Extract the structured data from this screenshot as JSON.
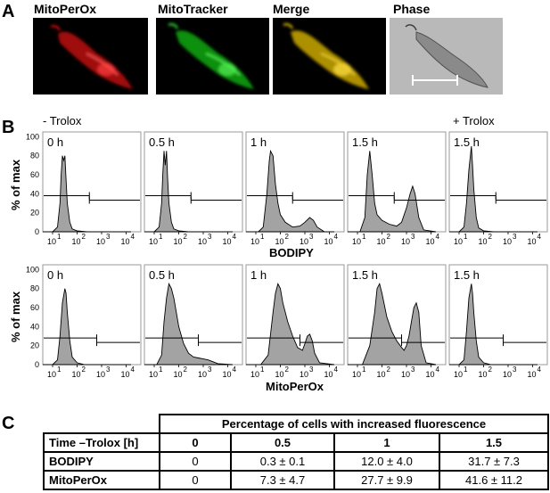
{
  "panels": {
    "a": "A",
    "b": "B",
    "c": "C"
  },
  "images": [
    {
      "label": "MitoPerOx",
      "color": "#e01010"
    },
    {
      "label": "MitoTracker",
      "color": "#20d020"
    },
    {
      "label": "Merge",
      "color": "#e8d010"
    },
    {
      "label": "Phase",
      "color": "#b8b8b8"
    }
  ],
  "condition_labels": {
    "minus": "- Trolox",
    "plus": "+ Trolox"
  },
  "ylabel": "% of max",
  "row_xlabels": [
    "BODIPY",
    "MitoPerOx"
  ],
  "y_ticks": [
    "100",
    "80",
    "60",
    "40",
    "20",
    "0"
  ],
  "x_ticks": [
    {
      "base": "10",
      "exp": "1"
    },
    {
      "base": "10",
      "exp": "2"
    },
    {
      "base": "10",
      "exp": "3"
    },
    {
      "base": "10",
      "exp": "4"
    }
  ],
  "chart_data": [
    {
      "type": "area",
      "row": "BODIPY",
      "time": "0 h",
      "gate_y": 38,
      "gate_split_log": 2.5,
      "x": [
        0.6,
        1.0,
        1.2,
        1.3,
        1.35,
        1.4,
        1.45,
        1.5,
        1.55,
        1.6,
        1.7,
        1.8,
        2.0,
        2.4,
        3.0,
        4.2
      ],
      "y": [
        0,
        0,
        5,
        30,
        60,
        80,
        75,
        80,
        55,
        30,
        10,
        3,
        1,
        0,
        0,
        0
      ]
    },
    {
      "type": "area",
      "row": "BODIPY",
      "time": "0.5 h",
      "gate_y": 38,
      "gate_split_log": 2.5,
      "x": [
        0.6,
        1.0,
        1.2,
        1.3,
        1.35,
        1.4,
        1.45,
        1.5,
        1.55,
        1.6,
        1.7,
        1.8,
        2.0,
        2.4,
        3.0,
        4.2
      ],
      "y": [
        0,
        0,
        5,
        30,
        60,
        85,
        70,
        85,
        55,
        30,
        10,
        3,
        1,
        0,
        0,
        0
      ]
    },
    {
      "type": "area",
      "row": "BODIPY",
      "time": "1 h",
      "gate_y": 38,
      "gate_split_log": 2.5,
      "x": [
        0.6,
        1.1,
        1.3,
        1.45,
        1.55,
        1.6,
        1.7,
        1.8,
        1.9,
        2.0,
        2.2,
        2.5,
        2.8,
        3.0,
        3.2,
        3.35,
        3.5,
        3.8,
        4.2
      ],
      "y": [
        0,
        0,
        5,
        40,
        75,
        85,
        80,
        50,
        30,
        18,
        10,
        5,
        6,
        10,
        15,
        12,
        5,
        0,
        0
      ]
    },
    {
      "type": "area",
      "row": "BODIPY",
      "time": "1.5 h",
      "gate_y": 38,
      "gate_split_log": 2.5,
      "x": [
        0.6,
        1.1,
        1.3,
        1.4,
        1.5,
        1.6,
        1.7,
        1.8,
        2.0,
        2.3,
        2.6,
        2.8,
        3.0,
        3.15,
        3.25,
        3.35,
        3.5,
        3.7,
        4.2
      ],
      "y": [
        0,
        0,
        15,
        60,
        85,
        60,
        30,
        18,
        12,
        8,
        6,
        10,
        25,
        40,
        48,
        40,
        15,
        2,
        0
      ]
    },
    {
      "type": "area",
      "row": "BODIPY",
      "time": "1.5 h",
      "treatment": "+ Trolox",
      "gate_y": 38,
      "gate_split_log": 2.5,
      "x": [
        0.6,
        1.0,
        1.2,
        1.3,
        1.4,
        1.5,
        1.55,
        1.6,
        1.7,
        1.8,
        2.0,
        2.4,
        3.0,
        4.2
      ],
      "y": [
        0,
        0,
        5,
        30,
        65,
        90,
        70,
        45,
        15,
        4,
        1,
        0,
        0,
        0
      ]
    },
    {
      "type": "area",
      "row": "MitoPerOx",
      "time": "0 h",
      "gate_y": 28,
      "gate_split_log": 2.8,
      "x": [
        0.6,
        1.0,
        1.2,
        1.3,
        1.4,
        1.5,
        1.55,
        1.6,
        1.7,
        1.8,
        2.0,
        2.3,
        3.0,
        4.2
      ],
      "y": [
        0,
        0,
        5,
        30,
        65,
        80,
        75,
        55,
        25,
        8,
        2,
        0,
        0,
        0
      ]
    },
    {
      "type": "area",
      "row": "MitoPerOx",
      "time": "0.5 h",
      "gate_y": 28,
      "gate_split_log": 2.8,
      "x": [
        0.6,
        1.1,
        1.3,
        1.4,
        1.5,
        1.6,
        1.7,
        1.8,
        1.9,
        2.0,
        2.2,
        2.4,
        2.6,
        2.8,
        3.0,
        3.2,
        3.4,
        3.6,
        4.2
      ],
      "y": [
        0,
        0,
        10,
        45,
        70,
        85,
        80,
        70,
        55,
        40,
        22,
        12,
        8,
        7,
        6,
        5,
        3,
        1,
        0
      ]
    },
    {
      "type": "area",
      "row": "MitoPerOx",
      "time": "1 h",
      "gate_y": 28,
      "gate_split_log": 2.8,
      "x": [
        0.6,
        1.2,
        1.5,
        1.7,
        1.8,
        1.9,
        2.0,
        2.1,
        2.3,
        2.5,
        2.7,
        2.9,
        3.0,
        3.1,
        3.2,
        3.3,
        3.4,
        3.6,
        4.2
      ],
      "y": [
        0,
        0,
        10,
        55,
        75,
        85,
        80,
        65,
        45,
        30,
        18,
        15,
        22,
        30,
        32,
        25,
        12,
        2,
        0
      ]
    },
    {
      "type": "area",
      "row": "MitoPerOx",
      "time": "1.5 h",
      "gate_y": 28,
      "gate_split_log": 2.8,
      "x": [
        0.6,
        1.2,
        1.5,
        1.7,
        1.8,
        1.9,
        2.0,
        2.2,
        2.4,
        2.6,
        2.8,
        2.9,
        3.0,
        3.1,
        3.2,
        3.3,
        3.4,
        3.5,
        3.6,
        3.8,
        4.2
      ],
      "y": [
        0,
        0,
        20,
        55,
        80,
        85,
        75,
        50,
        35,
        25,
        18,
        15,
        20,
        30,
        45,
        60,
        65,
        55,
        20,
        2,
        0
      ]
    },
    {
      "type": "area",
      "row": "MitoPerOx",
      "time": "1.5 h",
      "treatment": "+ Trolox",
      "gate_y": 28,
      "gate_split_log": 2.8,
      "x": [
        0.6,
        1.0,
        1.2,
        1.3,
        1.4,
        1.5,
        1.55,
        1.6,
        1.7,
        1.8,
        2.0,
        2.3,
        3.0,
        4.2
      ],
      "y": [
        0,
        0,
        5,
        35,
        70,
        85,
        75,
        55,
        25,
        8,
        2,
        0,
        0,
        0
      ]
    }
  ],
  "table": {
    "title": "Percentage of cells with increased fluorescence",
    "header": [
      "Time  –Trolox [h]",
      "0",
      "0.5",
      "1",
      "1.5"
    ],
    "rows": [
      [
        "BODIPY",
        "0",
        "0.3 ± 0.1",
        "12.0 ± 4.0",
        "31.7 ± 7.3"
      ],
      [
        "MitoPerOx",
        "0",
        "7.3 ± 4.7",
        "27.7 ± 9.9",
        "41.6 ± 11.2"
      ]
    ]
  }
}
